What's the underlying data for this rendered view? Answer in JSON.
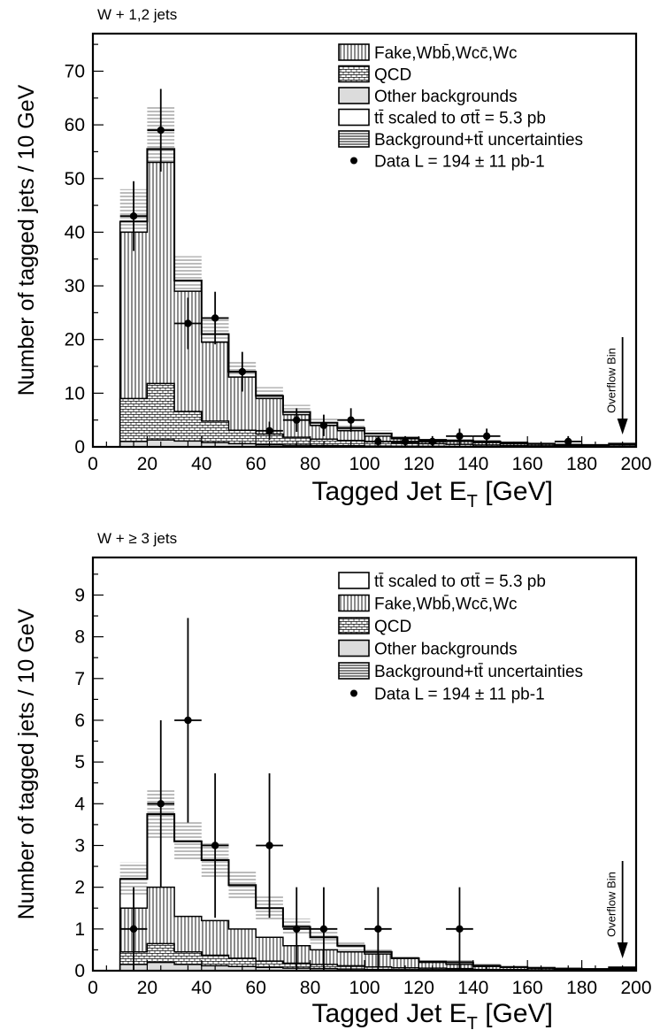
{
  "chart_data": [
    {
      "type": "histogram",
      "title": "W + 1,2 jets",
      "xlabel_main": "Tagged Jet E",
      "xlabel_sub": "T",
      "xlabel_unit": " [GeV]",
      "ylabel": "Number of tagged jets / 10 GeV",
      "xlim": [
        0,
        200
      ],
      "ylim": [
        0,
        77
      ],
      "xticks": [
        0,
        20,
        40,
        60,
        80,
        100,
        120,
        140,
        160,
        180,
        200
      ],
      "yticks": [
        0,
        10,
        20,
        30,
        40,
        50,
        60,
        70
      ],
      "overflow_label": "Overflow Bin",
      "bin_edges": [
        10,
        20,
        30,
        40,
        50,
        60,
        70,
        80,
        90,
        100,
        110,
        120,
        130,
        140,
        150,
        160,
        170,
        180,
        190,
        200
      ],
      "stack": {
        "other": [
          1.0,
          1.3,
          1.1,
          0.8,
          0.6,
          0.4,
          0.3,
          0.25,
          0.2,
          0.15,
          0.12,
          0.1,
          0.08,
          0.06,
          0.05,
          0.04,
          0.03,
          0.02,
          0.1
        ],
        "qcd": [
          8,
          10.5,
          5.5,
          4.0,
          2.5,
          2.0,
          1.5,
          1.2,
          1.0,
          0.8,
          0.6,
          0.5,
          0.4,
          0.3,
          0.2,
          0.15,
          0.1,
          0.1,
          0.3
        ],
        "fake": [
          40,
          53,
          29,
          19.5,
          13,
          9,
          6,
          4,
          3,
          2,
          1.5,
          1.2,
          1.0,
          0.8,
          0.6,
          0.5,
          0.3,
          0.3,
          0.5
        ],
        "total": [
          42,
          55.5,
          31,
          21,
          14,
          9.5,
          6.5,
          4.5,
          3.5,
          2.5,
          1.7,
          1.3,
          1.2,
          1.0,
          0.8,
          0.6,
          0.4,
          0.35,
          0.6
        ]
      },
      "uncertainty": [
        6,
        8,
        4.5,
        3,
        2.2,
        1.6,
        1.3,
        1.0,
        0.8,
        0.6,
        0.5,
        0.4,
        0.35,
        0.3,
        0.25,
        0.2,
        0.15,
        0.15,
        0.2
      ],
      "data_points": [
        {
          "x": 15,
          "y": 43,
          "err": 6.5
        },
        {
          "x": 25,
          "y": 59,
          "err": 7.7
        },
        {
          "x": 35,
          "y": 23,
          "err": 4.8
        },
        {
          "x": 45,
          "y": 24,
          "err": 4.9
        },
        {
          "x": 55,
          "y": 14,
          "err": 3.7
        },
        {
          "x": 65,
          "y": 3,
          "err": 1.7
        },
        {
          "x": 75,
          "y": 5,
          "err": 2.2
        },
        {
          "x": 85,
          "y": 4,
          "err": 2.0
        },
        {
          "x": 95,
          "y": 5,
          "err": 2.2
        },
        {
          "x": 105,
          "y": 1,
          "err": 1.0
        },
        {
          "x": 115,
          "y": 1,
          "err": 1.0
        },
        {
          "x": 125,
          "y": 1,
          "err": 1.0
        },
        {
          "x": 135,
          "y": 2,
          "err": 1.4
        },
        {
          "x": 145,
          "y": 2,
          "err": 1.4
        },
        {
          "x": 175,
          "y": 1,
          "err": 1.0
        }
      ],
      "legend": [
        {
          "kind": "fake",
          "text": "Fake,Wbb̄,Wcc̄,Wc"
        },
        {
          "kind": "qcd",
          "text": "QCD"
        },
        {
          "kind": "other",
          "text": "Other backgrounds"
        },
        {
          "kind": "ttbar",
          "text": "tt̄ scaled to σtt̄ = 5.3 pb"
        },
        {
          "kind": "unc",
          "text": "Background+tt̄ uncertainties"
        },
        {
          "kind": "data",
          "text": "Data L = 194 ± 11 pb-1"
        }
      ]
    },
    {
      "type": "histogram",
      "title": "W + ≥ 3 jets",
      "xlabel_main": "Tagged Jet E",
      "xlabel_sub": "T",
      "xlabel_unit": " [GeV]",
      "ylabel": "Number of tagged jets / 10 GeV",
      "xlim": [
        0,
        200
      ],
      "ylim": [
        0,
        9.9
      ],
      "xticks": [
        0,
        20,
        40,
        60,
        80,
        100,
        120,
        140,
        160,
        180,
        200
      ],
      "yticks": [
        0,
        1,
        2,
        3,
        4,
        5,
        6,
        7,
        8,
        9
      ],
      "overflow_label": "Overflow Bin",
      "bin_edges": [
        10,
        20,
        30,
        40,
        50,
        60,
        70,
        80,
        90,
        100,
        110,
        120,
        130,
        140,
        150,
        160,
        170,
        180,
        190,
        200
      ],
      "stack": {
        "other": [
          0.15,
          0.2,
          0.15,
          0.12,
          0.1,
          0.08,
          0.06,
          0.05,
          0.04,
          0.03,
          0.02,
          0.02,
          0.02,
          0.01,
          0.01,
          0.01,
          0.01,
          0.01,
          0.02
        ],
        "qcd": [
          0.3,
          0.45,
          0.3,
          0.25,
          0.2,
          0.15,
          0.12,
          0.1,
          0.08,
          0.06,
          0.05,
          0.04,
          0.03,
          0.02,
          0.02,
          0.01,
          0.01,
          0.01,
          0.02
        ],
        "fake": [
          1.5,
          2.0,
          1.3,
          1.2,
          1.0,
          0.8,
          0.6,
          0.5,
          0.45,
          0.4,
          0.3,
          0.2,
          0.15,
          0.1,
          0.08,
          0.06,
          0.05,
          0.04,
          0.06
        ],
        "total": [
          2.2,
          3.75,
          3.1,
          2.65,
          2.05,
          1.5,
          1.05,
          0.8,
          0.6,
          0.45,
          0.3,
          0.22,
          0.2,
          0.12,
          0.09,
          0.07,
          0.05,
          0.04,
          0.08
        ]
      },
      "uncertainty": [
        0.4,
        0.6,
        0.45,
        0.4,
        0.35,
        0.3,
        0.2,
        0.15,
        0.12,
        0.1,
        0.08,
        0.06,
        0.05,
        0.04,
        0.03,
        0.03,
        0.02,
        0.02,
        0.03
      ],
      "data_points": [
        {
          "x": 15,
          "y": 1,
          "err": 1.0
        },
        {
          "x": 25,
          "y": 4,
          "err": 2.0
        },
        {
          "x": 35,
          "y": 6,
          "err": 2.45
        },
        {
          "x": 45,
          "y": 3,
          "err": 1.73
        },
        {
          "x": 65,
          "y": 3,
          "err": 1.73
        },
        {
          "x": 75,
          "y": 1,
          "err": 1.0
        },
        {
          "x": 85,
          "y": 1,
          "err": 1.0
        },
        {
          "x": 105,
          "y": 1,
          "err": 1.0
        },
        {
          "x": 135,
          "y": 1,
          "err": 1.0
        }
      ],
      "legend": [
        {
          "kind": "ttbar",
          "text": "tt̄ scaled to σtt̄ = 5.3 pb"
        },
        {
          "kind": "fake",
          "text": "Fake,Wbb̄,Wcc̄,Wc"
        },
        {
          "kind": "qcd",
          "text": "QCD"
        },
        {
          "kind": "other",
          "text": "Other backgrounds"
        },
        {
          "kind": "unc",
          "text": "Background+tt̄ uncertainties"
        },
        {
          "kind": "data",
          "text": "Data L = 194 ± 11 pb-1"
        }
      ]
    }
  ]
}
